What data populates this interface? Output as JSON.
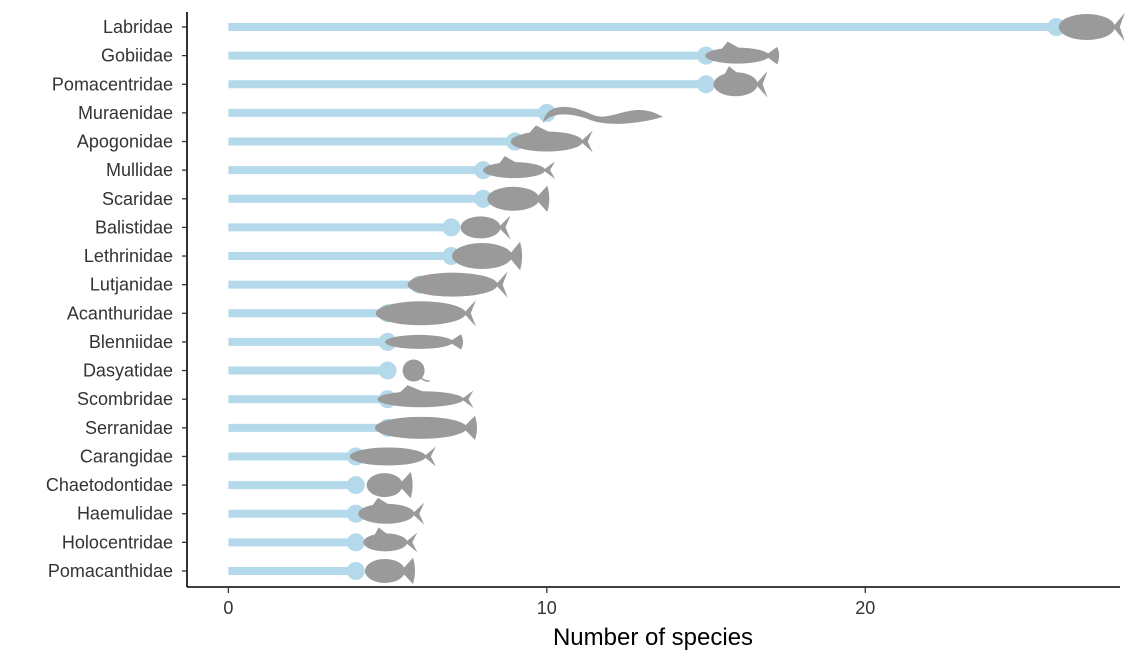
{
  "chart_data": {
    "type": "lollipop",
    "title": "",
    "xlabel": "Number of species",
    "ylabel": "",
    "xlim": [
      -1.3,
      28
    ],
    "xticks": [
      0,
      10,
      20
    ],
    "grid": false,
    "legend": "none",
    "categories": [
      "Labridae",
      "Gobiidae",
      "Pomacentridae",
      "Muraenidae",
      "Apogonidae",
      "Mullidae",
      "Scaridae",
      "Balistidae",
      "Lethrinidae",
      "Lutjanidae",
      "Acanthuridae",
      "Blenniidae",
      "Dasyatidae",
      "Scombridae",
      "Serranidae",
      "Carangidae",
      "Chaetodontidae",
      "Haemulidae",
      "Holocentridae",
      "Pomacanthidae"
    ],
    "values": [
      26,
      15,
      15,
      10,
      9,
      8,
      8,
      7,
      7,
      6,
      5,
      5,
      5,
      5,
      5,
      4,
      4,
      4,
      4,
      4
    ],
    "silhouettes": [
      "wrasse",
      "goby",
      "damselfish",
      "eel",
      "cardinalfish",
      "goatfish",
      "parrotfish",
      "triggerfish",
      "emperor",
      "snapper",
      "surgeonfish",
      "blenny",
      "stingray",
      "mackerel",
      "grouper",
      "jack",
      "butterflyfish",
      "grunt",
      "squirrelfish",
      "angelfish"
    ]
  },
  "colors": {
    "lollipop": "#b3d9ea",
    "silhouette": "#9a9a9a",
    "axis": "#000000",
    "text": "#333333"
  }
}
